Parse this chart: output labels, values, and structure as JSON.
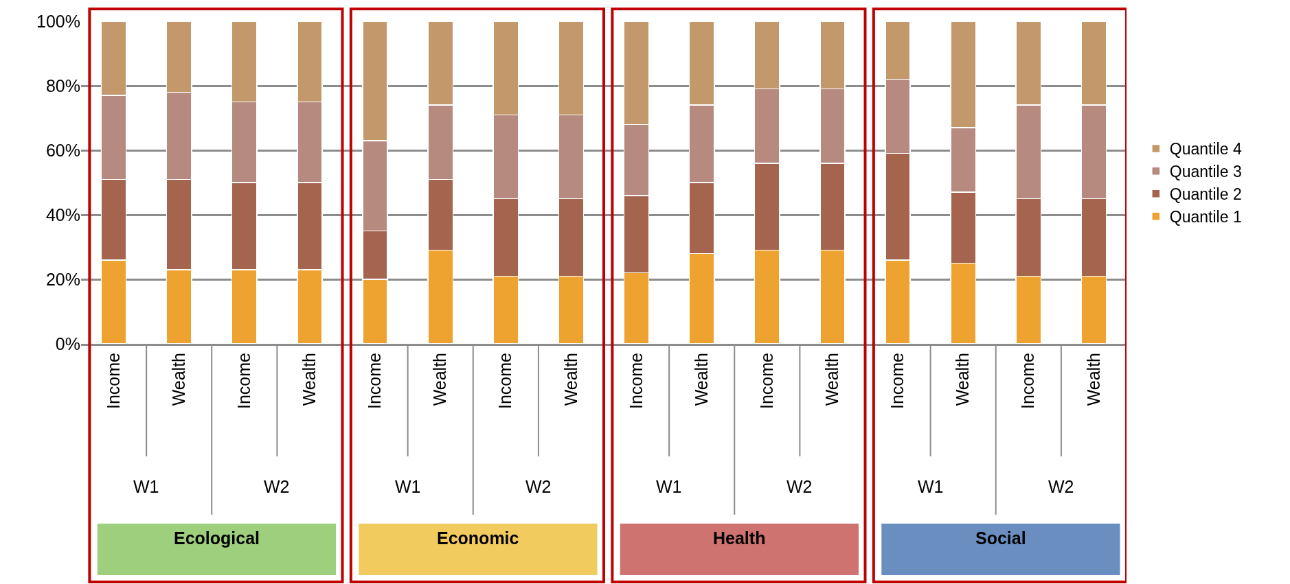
{
  "chart_data": {
    "type": "bar",
    "stacked": true,
    "categories": [
      "Income",
      "Wealth",
      "Income",
      "Wealth",
      "Income",
      "Wealth",
      "Income",
      "Wealth",
      "Income",
      "Wealth",
      "Income",
      "Wealth",
      "Income",
      "Wealth",
      "Income",
      "Wealth"
    ],
    "series": [
      {
        "name": "Quantile 1",
        "color": "#eea230",
        "values": [
          26,
          23,
          23,
          23,
          20,
          29,
          21,
          21,
          22,
          28,
          29,
          29,
          26,
          25,
          21,
          21
        ]
      },
      {
        "name": "Quantile 2",
        "color": "#a5644e",
        "values": [
          25,
          28,
          27,
          27,
          15,
          22,
          24,
          24,
          24,
          22,
          27,
          27,
          33,
          22,
          24,
          24
        ]
      },
      {
        "name": "Quantile 3",
        "color": "#b68a7e",
        "values": [
          26,
          27,
          25,
          25,
          28,
          23,
          26,
          26,
          22,
          24,
          23,
          23,
          23,
          20,
          29,
          29
        ]
      },
      {
        "name": "Quantile 4",
        "color": "#c3986b",
        "values": [
          23,
          22,
          25,
          25,
          37,
          26,
          29,
          29,
          32,
          26,
          21,
          21,
          18,
          33,
          26,
          26
        ]
      }
    ],
    "ylim": [
      0,
      100
    ],
    "yticks": [
      {
        "value": 0,
        "label": "0%"
      },
      {
        "value": 20,
        "label": "20%"
      },
      {
        "value": 40,
        "label": "40%"
      },
      {
        "value": 60,
        "label": "60%"
      },
      {
        "value": 80,
        "label": "80%"
      },
      {
        "value": 100,
        "label": "100%"
      }
    ],
    "grid": "y",
    "legend": "right",
    "annotations": [
      "W1",
      "W2",
      "W1",
      "W2",
      "W1",
      "W2",
      "W1",
      "W2",
      "Ecological",
      "Economic",
      "Health",
      "Social"
    ]
  }
}
